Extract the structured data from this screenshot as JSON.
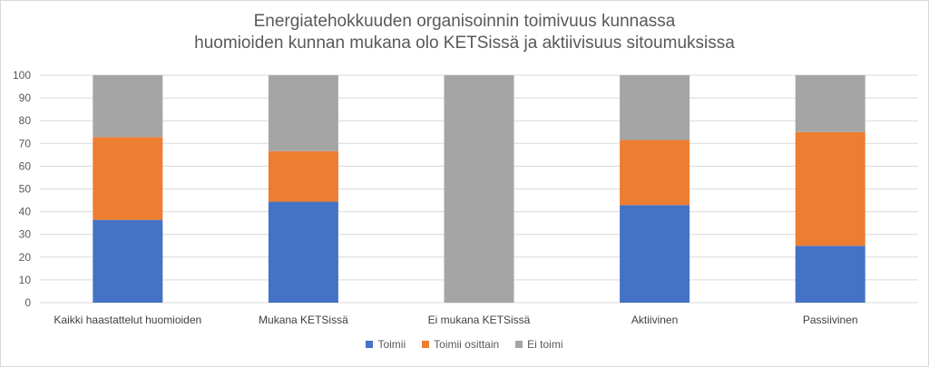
{
  "chart_data": {
    "type": "bar",
    "stacked": true,
    "title_lines": [
      "Energiatehokkuuden organisoinnin toimivuus kunnassa",
      "huomioiden kunnan mukana olo KETSissä ja aktiivisuus sitoumuksissa"
    ],
    "categories": [
      "Kaikki haastattelut huomioiden",
      "Mukana KETSissä",
      "Ei mukana KETSissä",
      "Aktiivinen",
      "Passiivinen"
    ],
    "series": [
      {
        "name": "Toimii",
        "color": "#4472c4",
        "values": [
          36.4,
          44.4,
          0,
          42.9,
          25
        ]
      },
      {
        "name": "Toimii osittain",
        "color": "#ed7d31",
        "values": [
          36.4,
          22.2,
          0,
          28.6,
          50
        ]
      },
      {
        "name": "Ei toimi",
        "color": "#a5a5a5",
        "values": [
          27.2,
          33.4,
          100,
          28.5,
          25
        ]
      }
    ],
    "y_ticks": [
      "0",
      "10",
      "20",
      "30",
      "40",
      "50",
      "60",
      "70",
      "80",
      "90",
      "100"
    ],
    "ylim": [
      0,
      100
    ],
    "grid": true,
    "legend_position": "bottom"
  }
}
